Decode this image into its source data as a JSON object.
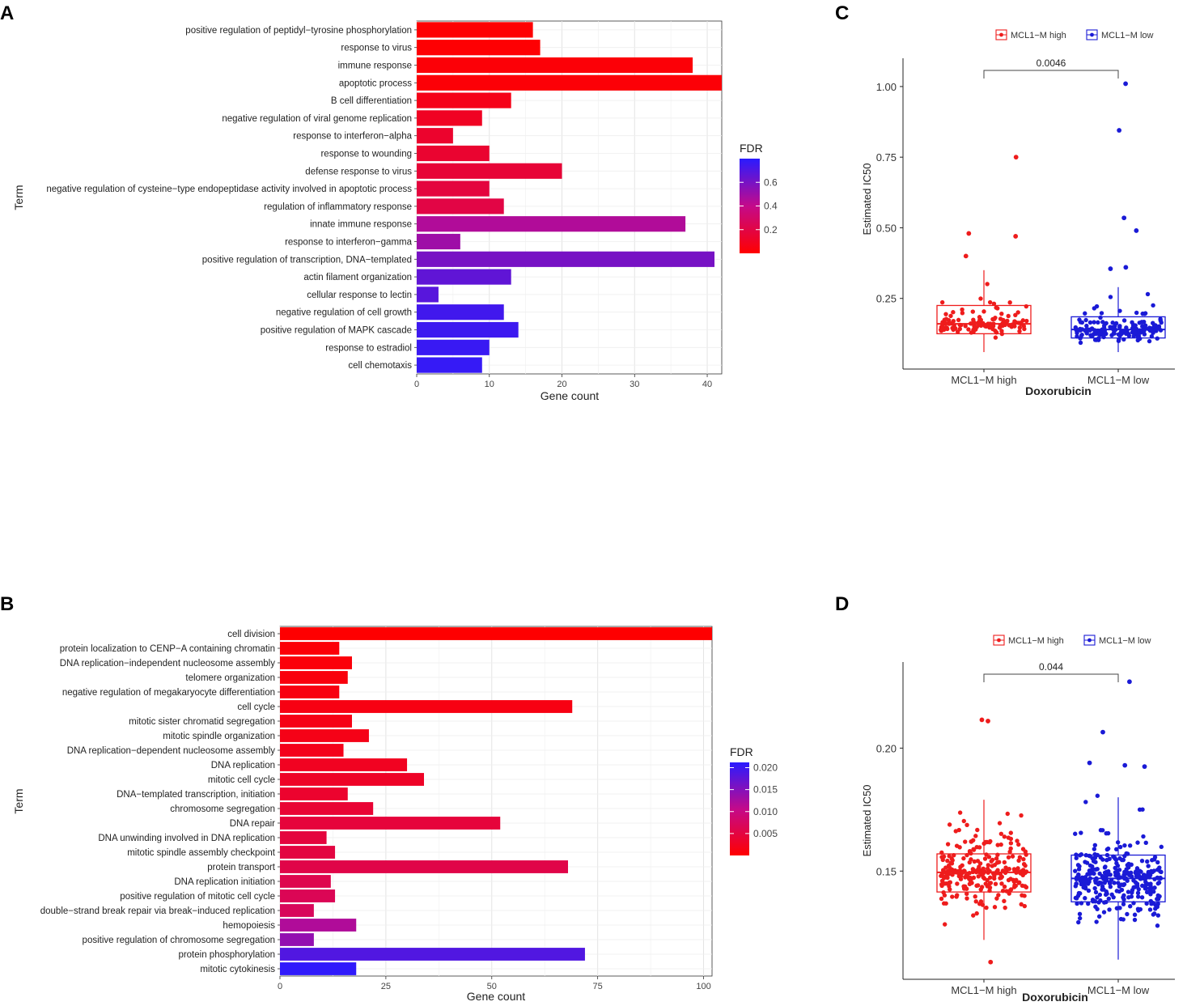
{
  "chart_data": [
    {
      "panel": "A",
      "type": "bar",
      "orientation": "horizontal",
      "xlabel": "Gene count",
      "ylabel": "Term",
      "xlim": [
        0,
        42
      ],
      "xticks": [
        0,
        10,
        20,
        30,
        40
      ],
      "grid": true,
      "legend": {
        "title": "FDR",
        "ticks": [
          "0.2",
          "0.4",
          "0.6"
        ],
        "range": [
          0.0,
          0.8
        ],
        "placement": "right",
        "low_color": "#ff0000",
        "high_color": "#2a1bff"
      },
      "categories": [
        "positive regulation of peptidyl−tyrosine phosphorylation",
        "response to virus",
        "immune response",
        "apoptotic process",
        "B cell differentiation",
        "negative regulation of viral genome replication",
        "response to interferon−alpha",
        "response to wounding",
        "defense response to virus",
        "negative regulation of cysteine−type endopeptidase activity involved in apoptotic process",
        "regulation of inflammatory response",
        "innate immune response",
        "response to interferon−gamma",
        "positive regulation of transcription, DNA−templated",
        "actin filament organization",
        "cellular response to lectin",
        "negative regulation of cell growth",
        "positive regulation of MAPK cascade",
        "response to estradiol",
        "cell chemotaxis"
      ],
      "values": [
        16,
        17,
        38,
        42,
        13,
        9,
        5,
        10,
        20,
        10,
        12,
        37,
        6,
        41,
        13,
        3,
        12,
        14,
        10,
        9
      ],
      "fdr": [
        0.01,
        0.01,
        0.02,
        0.02,
        0.07,
        0.1,
        0.13,
        0.14,
        0.16,
        0.18,
        0.2,
        0.45,
        0.5,
        0.6,
        0.66,
        0.68,
        0.74,
        0.75,
        0.76,
        0.77
      ]
    },
    {
      "panel": "B",
      "type": "bar",
      "orientation": "horizontal",
      "xlabel": "Gene count",
      "ylabel": "Term",
      "xlim": [
        0,
        102
      ],
      "xticks": [
        0,
        25,
        50,
        75,
        100
      ],
      "grid": true,
      "legend": {
        "title": "FDR",
        "ticks": [
          "0.005",
          "0.010",
          "0.015",
          "0.020"
        ],
        "range": [
          0.0,
          0.0212
        ],
        "placement": "right",
        "low_color": "#ff0000",
        "high_color": "#2a1bff"
      },
      "categories": [
        "cell division",
        "protein localization to CENP−A containing chromatin",
        "DNA replication−independent nucleosome assembly",
        "telomere organization",
        "negative regulation of megakaryocyte differentiation",
        "cell cycle",
        "mitotic sister chromatid segregation",
        "mitotic spindle organization",
        "DNA replication−dependent nucleosome assembly",
        "DNA replication",
        "mitotic cell cycle",
        "DNA−templated transcription, initiation",
        "chromosome segregation",
        "DNA repair",
        "DNA unwinding involved in DNA replication",
        "mitotic spindle assembly checkpoint",
        "protein transport",
        "DNA replication initiation",
        "positive regulation of mitotic cell cycle",
        "double−strand break repair via break−induced replication",
        "hemopoiesis",
        "positive regulation of chromosome segregation",
        "protein phosphorylation",
        "mitotic cytokinesis"
      ],
      "values": [
        102,
        14,
        17,
        16,
        14,
        69,
        17,
        21,
        15,
        30,
        34,
        16,
        22,
        52,
        11,
        13,
        68,
        12,
        13,
        8,
        18,
        8,
        72,
        18
      ],
      "fdr": [
        0.0001,
        0.0005,
        0.0008,
        0.001,
        0.0012,
        0.0014,
        0.0016,
        0.0018,
        0.002,
        0.0025,
        0.003,
        0.0035,
        0.004,
        0.0045,
        0.0048,
        0.005,
        0.0055,
        0.006,
        0.0065,
        0.007,
        0.012,
        0.014,
        0.0185,
        0.0208
      ]
    },
    {
      "panel": "C",
      "type": "box",
      "title": "",
      "xlabel": "Doxorubicin",
      "ylabel": "Estimated IC50",
      "categories": [
        "MCL1−M high",
        "MCL1−M low"
      ],
      "legend": {
        "placement": "top",
        "entries": [
          "MCL1−M high",
          "MCL1−M low"
        ]
      },
      "colors": [
        "#ee1c1c",
        "#1a1ad6"
      ],
      "ylim": [
        0.0,
        1.1
      ],
      "yticks": [
        "0.25",
        "0.50",
        "0.75",
        "1.00"
      ],
      "pvalue": "0.0046",
      "series": [
        {
          "name": "MCL1−M high",
          "q1": 0.125,
          "median": 0.16,
          "q3": 0.225,
          "whisker_low": 0.06,
          "whisker_high": 0.35,
          "outliers": [
            0.75,
            0.48,
            0.47,
            0.4
          ],
          "n_points": 120,
          "point_min": 0.06,
          "point_max": 0.36
        },
        {
          "name": "MCL1−M low",
          "q1": 0.11,
          "median": 0.14,
          "q3": 0.185,
          "whisker_low": 0.06,
          "whisker_high": 0.29,
          "outliers": [
            1.01,
            0.845,
            0.535,
            0.49,
            0.36,
            0.355
          ],
          "n_points": 170,
          "point_min": 0.06,
          "point_max": 0.31
        }
      ]
    },
    {
      "panel": "D",
      "type": "box",
      "title": "",
      "xlabel": "Doxorubicin",
      "ylabel": "Estimated IC50",
      "categories": [
        "MCL1−M high",
        "MCL1−M low"
      ],
      "legend": {
        "placement": "top",
        "entries": [
          "MCL1−M high",
          "MCL1−M low"
        ]
      },
      "colors": [
        "#ee1c1c",
        "#1a1ad6"
      ],
      "ylim": [
        0.106,
        0.235
      ],
      "yticks": [
        "0.15",
        "0.20"
      ],
      "pvalue": "0.044",
      "series": [
        {
          "name": "MCL1−M high",
          "q1": 0.1415,
          "median": 0.1495,
          "q3": 0.157,
          "whisker_low": 0.122,
          "whisker_high": 0.179,
          "outliers": [
            0.2115,
            0.211,
            0.113
          ],
          "n_points": 260,
          "point_min": 0.12,
          "point_max": 0.19
        },
        {
          "name": "MCL1−M low",
          "q1": 0.1375,
          "median": 0.147,
          "q3": 0.1565,
          "whisker_low": 0.114,
          "whisker_high": 0.18,
          "outliers": [
            0.227,
            0.2065,
            0.194,
            0.193,
            0.1925
          ],
          "n_points": 320,
          "point_min": 0.114,
          "point_max": 0.185
        }
      ]
    }
  ],
  "panel_labels": [
    "A",
    "B",
    "C",
    "D"
  ]
}
